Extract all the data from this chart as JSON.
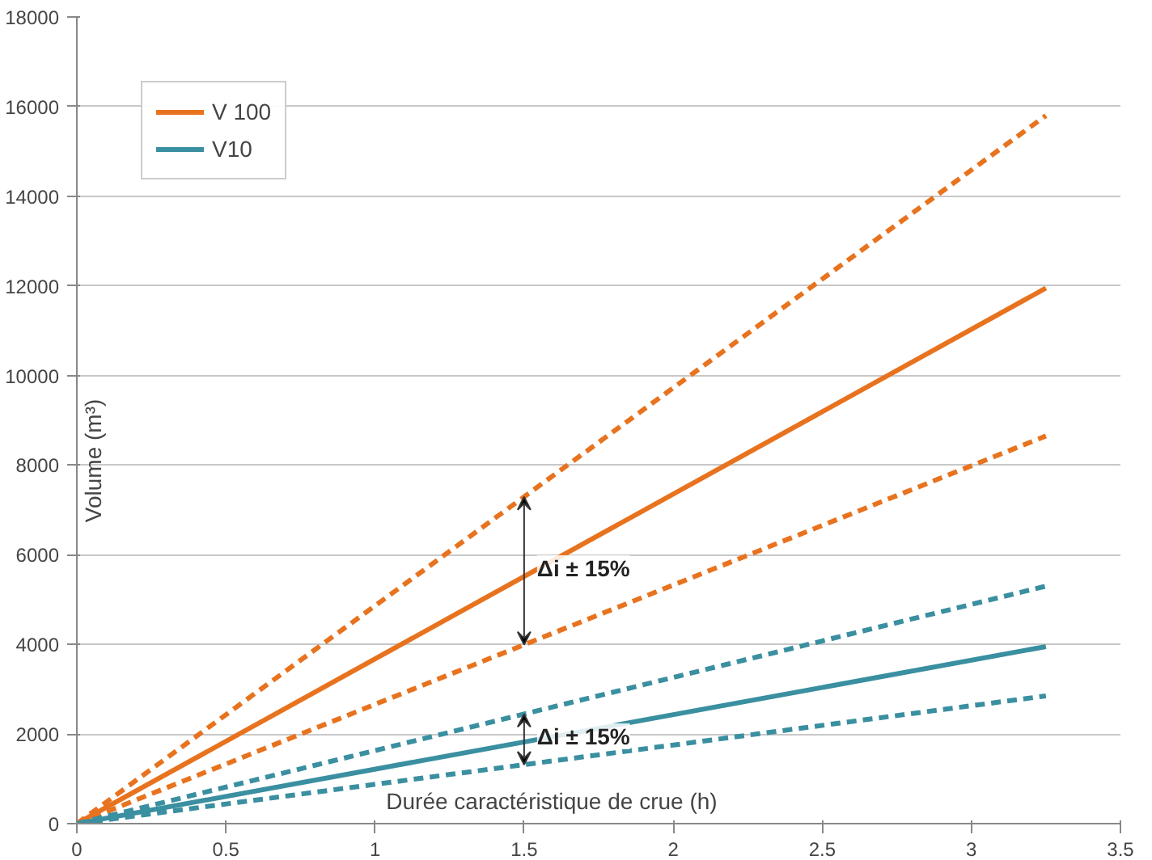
{
  "chart_data": {
    "type": "line",
    "xlabel": "Durée caractéristique de crue (h)",
    "ylabel": "Volume (m³)",
    "xlim": [
      0,
      3.5
    ],
    "xticks": [
      0,
      0.5,
      1,
      1.5,
      2,
      2.5,
      3,
      3.5
    ],
    "ylim": [
      0,
      18000
    ],
    "yticks": [
      0,
      2000,
      4000,
      6000,
      8000,
      10000,
      12000,
      14000,
      16000,
      18000
    ],
    "x": [
      0,
      3.25
    ],
    "grid": "y",
    "legend": "top left",
    "line_style": "solid",
    "marker": "none",
    "series": [
      {
        "name": "V 100",
        "color": "#e8731f",
        "values": [
          0,
          11950
        ]
      },
      {
        "name": "V10",
        "color": "#3a8fa0",
        "values": [
          0,
          3950
        ]
      },
      {
        "color": "#e8731f",
        "values": [
          0,
          15800
        ],
        "line_style": "dashed"
      },
      {
        "color": "#e8731f",
        "values": [
          0,
          8650
        ],
        "line_style": "dashed"
      },
      {
        "color": "#3a8fa0",
        "values": [
          0,
          5300
        ],
        "line_style": "dashed"
      },
      {
        "color": "#3a8fa0",
        "values": [
          0,
          2850
        ],
        "line_style": "dashed"
      }
    ],
    "annotations": [
      {
        "text": "Δi ± 15%",
        "x": 1.5,
        "y": 5700
      },
      {
        "text": "Δi ± 15%",
        "x": 1.5,
        "y": 1950
      }
    ]
  }
}
